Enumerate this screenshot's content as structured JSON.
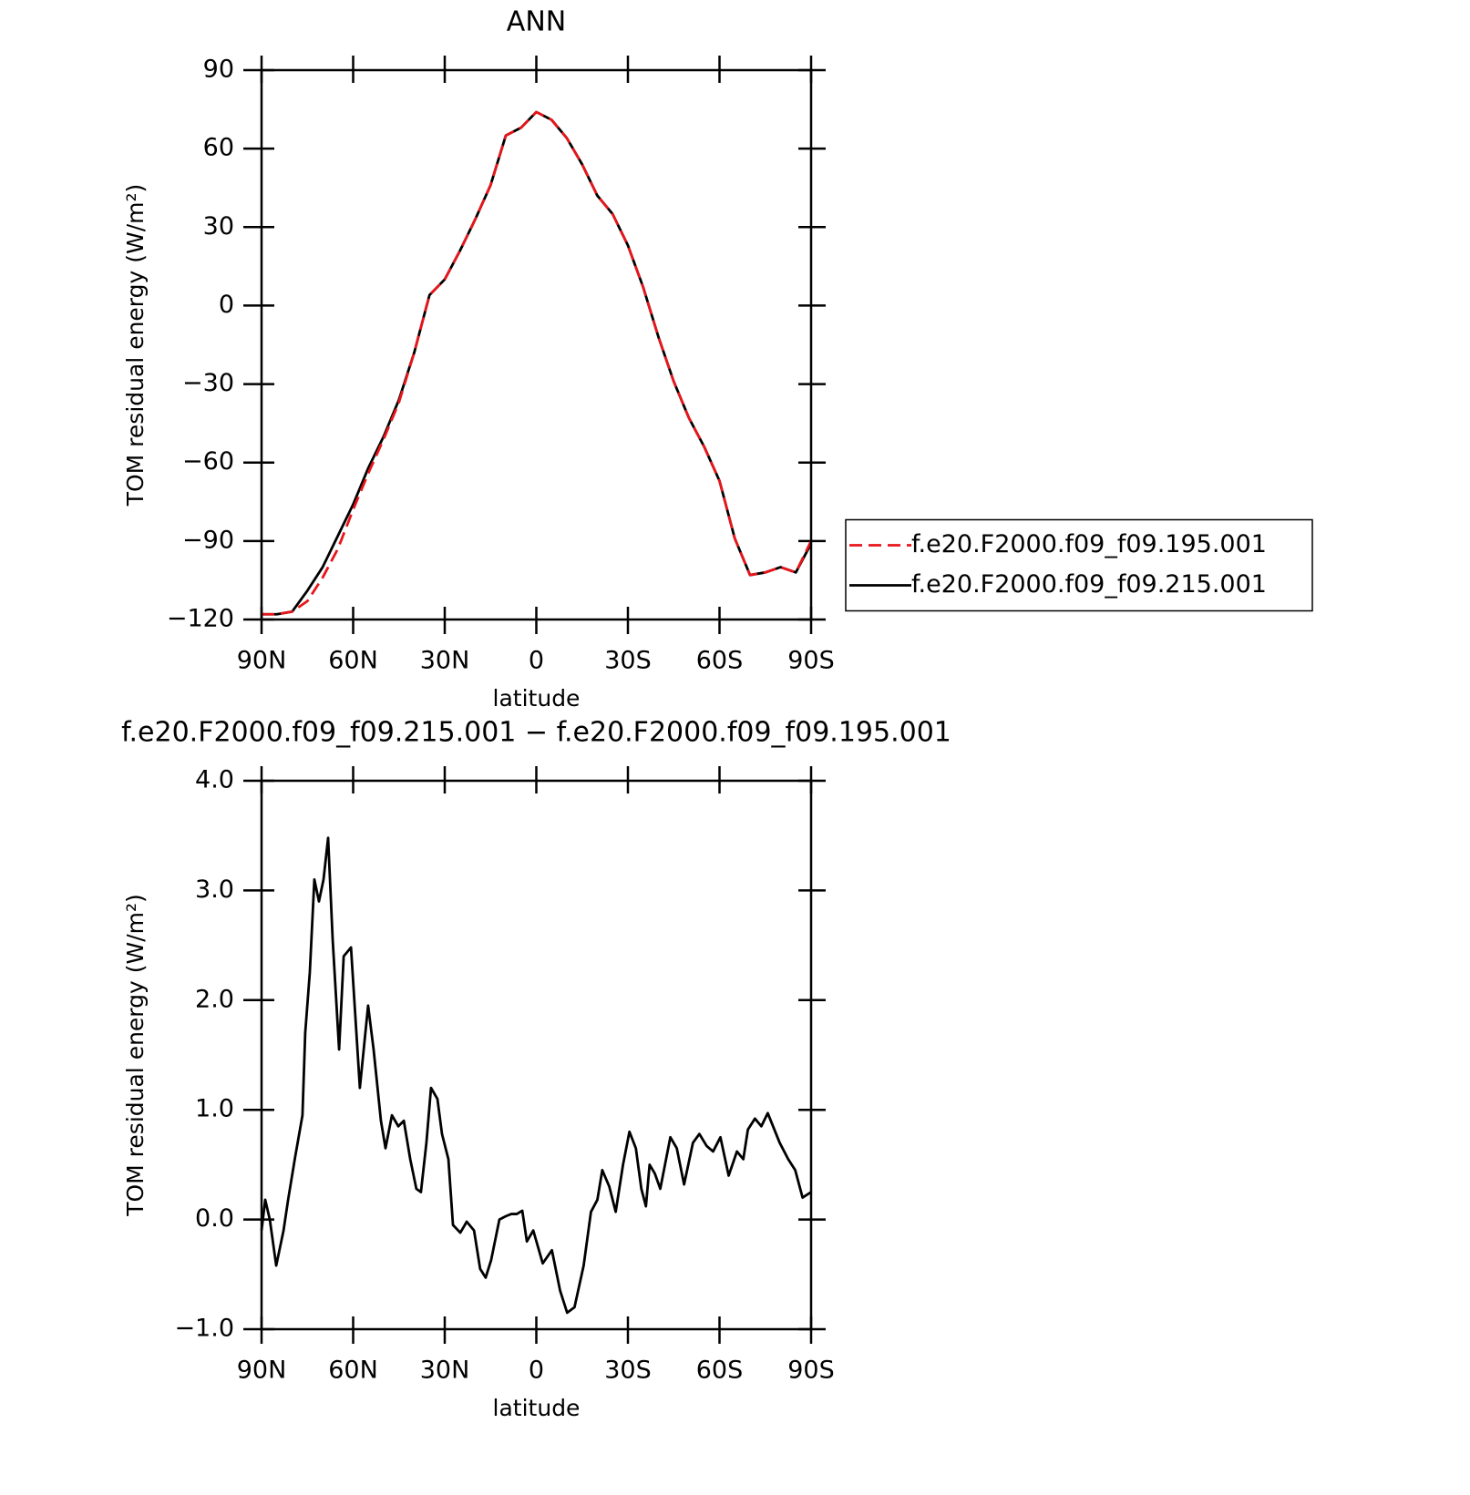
{
  "chart_data": [
    {
      "type": "line",
      "title": "ANN",
      "xlabel": "latitude",
      "ylabel": "TOM residual energy (W/m²)",
      "x": [
        90,
        85,
        80,
        75,
        70,
        65,
        60,
        55,
        50,
        45,
        40,
        35,
        30,
        25,
        20,
        15,
        10,
        5,
        0,
        -5,
        -10,
        -15,
        -20,
        -25,
        -30,
        -35,
        -40,
        -45,
        -50,
        -55,
        -60,
        -65,
        -70,
        -75,
        -80,
        -85,
        -90
      ],
      "series": [
        {
          "name": "f.e20.F2000.f09_f09.195.001",
          "color": "#e8161b",
          "dashed": true,
          "values": [
            -118,
            -118,
            -117,
            -113,
            -104,
            -93,
            -78,
            -64,
            -51,
            -37,
            -18,
            4,
            10,
            21,
            33,
            46,
            65,
            68,
            74,
            71,
            64,
            54,
            42,
            35,
            23,
            7,
            -12,
            -29,
            -43,
            -54,
            -67,
            -89,
            -103,
            -102,
            -100,
            -102,
            -90
          ]
        },
        {
          "name": "f.e20.F2000.f09_f09.215.001",
          "color": "#000000",
          "dashed": false,
          "values": [
            -118,
            -118,
            -117,
            -109,
            -100,
            -88,
            -76,
            -62,
            -50,
            -36,
            -18,
            4,
            10,
            21,
            33,
            46,
            65,
            68,
            74,
            71,
            64,
            54,
            42,
            35,
            23,
            7,
            -12,
            -29,
            -43,
            -54,
            -67,
            -89,
            -103,
            -102,
            -100,
            -102,
            -91
          ]
        }
      ],
      "xlim": [
        90,
        -90
      ],
      "xticks": [
        {
          "value": 90,
          "label": "90N"
        },
        {
          "value": 60,
          "label": "60N"
        },
        {
          "value": 30,
          "label": "30N"
        },
        0,
        {
          "value": -30,
          "label": "30S"
        },
        {
          "value": -60,
          "label": "60S"
        },
        {
          "value": -90,
          "label": "90S"
        }
      ],
      "ylim": [
        -120,
        90
      ],
      "yticks": [
        {
          "value": -120,
          "label": "−120"
        },
        {
          "value": -90,
          "label": "−90"
        },
        {
          "value": -60,
          "label": "−60"
        },
        {
          "value": -30,
          "label": "−30"
        },
        0,
        30,
        60,
        90
      ],
      "legend": "right"
    },
    {
      "type": "line",
      "title": "f.e20.F2000.f09_f09.215.001 − f.e20.F2000.f09_f09.195.001",
      "xlabel": "latitude",
      "ylabel": "TOM residual energy (W/m²)",
      "x": [
        90,
        88.8,
        87.3,
        85.2,
        82.8,
        81.3,
        79.0,
        76.6,
        75.7,
        74.2,
        72.7,
        71.2,
        69.7,
        68.2,
        66.7,
        64.6,
        63.1,
        60.7,
        57.8,
        55.1,
        53.3,
        50.9,
        49.4,
        47.3,
        45.2,
        43.4,
        41.3,
        39.3,
        37.8,
        36.0,
        34.5,
        32.4,
        30.9,
        28.8,
        27.3,
        24.9,
        22.8,
        20.4,
        18.4,
        16.6,
        14.8,
        12.1,
        10.0,
        8.2,
        6.4,
        4.6,
        3.1,
        1.0,
        -2.1,
        -5.1,
        -7.8,
        -10.1,
        -12.5,
        -15.5,
        -17.9,
        -20.0,
        -21.6,
        -23.9,
        -26.0,
        -28.4,
        -30.5,
        -32.6,
        -34.4,
        -35.9,
        -37.1,
        -38.8,
        -40.6,
        -43.9,
        -46.0,
        -48.4,
        -51.3,
        -53.4,
        -55.8,
        -57.9,
        -60.3,
        -63.0,
        -65.7,
        -67.8,
        -69.3,
        -71.6,
        -73.7,
        -75.8,
        -79.7,
        -82.5,
        -84.8,
        -87.2,
        -90
      ],
      "series": [
        {
          "color": "#000000",
          "values": [
            -0.1,
            0.18,
            0,
            -0.42,
            -0.1,
            0.18,
            0.57,
            0.95,
            1.7,
            2.25,
            3.1,
            2.9,
            3.1,
            3.48,
            2.55,
            1.55,
            2.4,
            2.48,
            1.2,
            1.95,
            1.55,
            0.9,
            0.65,
            0.95,
            0.85,
            0.9,
            0.55,
            0.28,
            0.25,
            0.7,
            1.2,
            1.1,
            0.78,
            0.55,
            -0.05,
            -0.12,
            -0.02,
            -0.1,
            -0.45,
            -0.53,
            -0.37,
            0,
            0.03,
            0.05,
            0.05,
            0.08,
            -0.2,
            -0.1,
            -0.4,
            -0.28,
            -0.65,
            -0.85,
            -0.8,
            -0.42,
            0.07,
            0.18,
            0.45,
            0.3,
            0.07,
            0.5,
            0.8,
            0.65,
            0.28,
            0.12,
            0.5,
            0.42,
            0.28,
            0.75,
            0.65,
            0.32,
            0.7,
            0.78,
            0.67,
            0.62,
            0.75,
            0.4,
            0.62,
            0.55,
            0.82,
            0.92,
            0.85,
            0.97,
            0.7,
            0.55,
            0.45,
            0.2,
            0.25
          ]
        }
      ],
      "xlim": [
        90,
        -90
      ],
      "xticks": [
        {
          "value": 90,
          "label": "90N"
        },
        {
          "value": 60,
          "label": "60N"
        },
        {
          "value": 30,
          "label": "30N"
        },
        0,
        {
          "value": -30,
          "label": "30S"
        },
        {
          "value": -60,
          "label": "60S"
        },
        {
          "value": -90,
          "label": "90S"
        }
      ],
      "ylim": [
        -1,
        4
      ],
      "yticks": [
        {
          "value": -1,
          "label": "−1.0"
        },
        {
          "value": 0,
          "label": "0.0"
        },
        {
          "value": 1,
          "label": "1.0"
        },
        {
          "value": 2,
          "label": "2.0"
        },
        {
          "value": 3,
          "label": "3.0"
        },
        {
          "value": 4,
          "label": "4.0"
        }
      ]
    }
  ]
}
